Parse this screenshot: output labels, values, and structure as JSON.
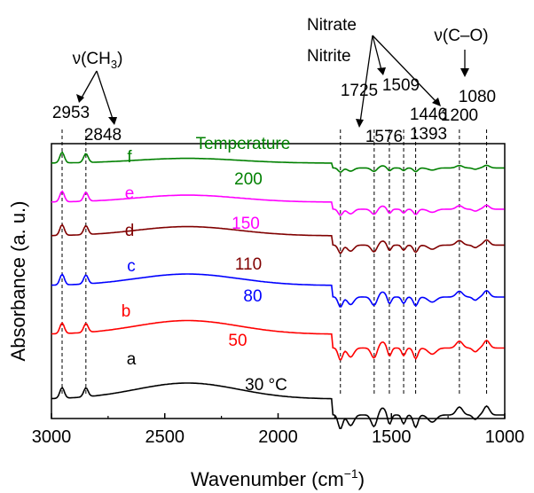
{
  "chart_data": {
    "type": "line",
    "xlabel_main": "Wavenumber (cm",
    "xlabel_sup": "−1",
    "xlabel_close": ")",
    "ylabel": "Absorbance (a. u.)",
    "x_range": [
      3000,
      1000
    ],
    "x_direction": "reversed",
    "x_ticks": [
      {
        "value": 3000,
        "label": "3000"
      },
      {
        "value": 2500,
        "label": "2500"
      },
      {
        "value": 2000,
        "label": "2000"
      },
      {
        "value": 1500,
        "label": "1500"
      },
      {
        "value": 1000,
        "label": "1000"
      }
    ],
    "grid": false,
    "legend_title": "Temperature",
    "temperature_unit": "°C",
    "series": [
      {
        "name": "a",
        "temperature": "30",
        "color": "#000000",
        "offset": 0
      },
      {
        "name": "b",
        "temperature": "50",
        "color": "#ff0000",
        "offset": 1
      },
      {
        "name": "c",
        "temperature": "80",
        "color": "#0000ff",
        "offset": 2
      },
      {
        "name": "d",
        "temperature": "110",
        "color": "#800000",
        "offset": 3
      },
      {
        "name": "e",
        "temperature": "150",
        "color": "#ff00ff",
        "offset": 4
      },
      {
        "name": "f",
        "temperature": "200",
        "color": "#008000",
        "offset": 5
      }
    ],
    "reference_lines": [
      2953,
      2848,
      1725,
      1576,
      1509,
      1446,
      1393,
      1200,
      1080
    ],
    "peak_labels": [
      {
        "value": 2953,
        "label": "2953"
      },
      {
        "value": 2848,
        "label": "2848"
      },
      {
        "value": 1725,
        "label": "1725"
      },
      {
        "value": 1576,
        "label": "1576"
      },
      {
        "value": 1509,
        "label": "1509"
      },
      {
        "value": 1446,
        "label": "1446"
      },
      {
        "value": 1393,
        "label": "1393"
      },
      {
        "value": 1200,
        "label": "1200"
      },
      {
        "value": 1080,
        "label": "1080"
      }
    ],
    "annotations": {
      "ch3_prefix": "ν(CH",
      "ch3_sub": "3",
      "ch3_suffix": ")",
      "co": "ν(C–O)",
      "nitrate": "Nitrate",
      "nitrite": "Nitrite"
    }
  }
}
